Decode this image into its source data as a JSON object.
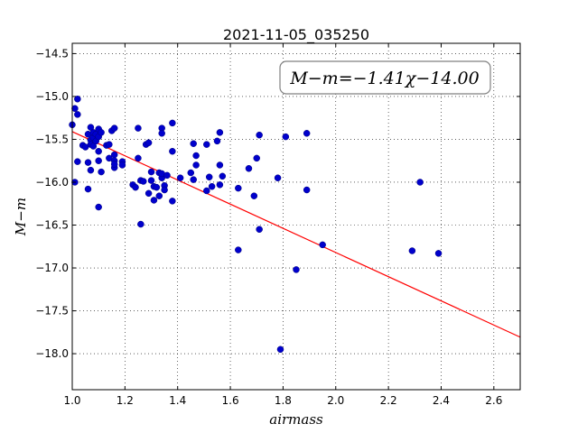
{
  "chart_data": {
    "type": "scatter",
    "title": "2021-11-05_035250",
    "xlabel": "airmass",
    "ylabel": "M−m",
    "annotation": "M−m=−1.41χ−14.00",
    "xlim": [
      1.0,
      2.7
    ],
    "ylim": [
      -18.42,
      -14.38
    ],
    "inverted_y": true,
    "grid": true,
    "x_ticks": [
      "1.0",
      "1.2",
      "1.4",
      "1.6",
      "1.8",
      "2.0",
      "2.2",
      "2.4",
      "2.6"
    ],
    "y_ticks": [
      "−14.5",
      "−15.0",
      "−15.5",
      "−16.0",
      "−16.5",
      "−17.0",
      "−17.5",
      "−18.0"
    ],
    "fit": {
      "slope": -1.41,
      "intercept": -14.0,
      "color": "#ff0000"
    },
    "point_color": "#0000cc",
    "points": [
      [
        1.0,
        -15.33
      ],
      [
        1.01,
        -15.14
      ],
      [
        1.02,
        -15.03
      ],
      [
        1.02,
        -15.21
      ],
      [
        1.01,
        -16.0
      ],
      [
        1.02,
        -15.76
      ],
      [
        1.04,
        -15.57
      ],
      [
        1.05,
        -15.59
      ],
      [
        1.06,
        -15.77
      ],
      [
        1.06,
        -15.44
      ],
      [
        1.07,
        -15.36
      ],
      [
        1.07,
        -15.51
      ],
      [
        1.07,
        -15.56
      ],
      [
        1.08,
        -15.48
      ],
      [
        1.08,
        -15.58
      ],
      [
        1.08,
        -15.42
      ],
      [
        1.09,
        -15.52
      ],
      [
        1.09,
        -15.44
      ],
      [
        1.1,
        -15.38
      ],
      [
        1.1,
        -15.75
      ],
      [
        1.1,
        -15.64
      ],
      [
        1.1,
        -15.47
      ],
      [
        1.11,
        -15.42
      ],
      [
        1.11,
        -15.88
      ],
      [
        1.06,
        -16.08
      ],
      [
        1.07,
        -15.86
      ],
      [
        1.1,
        -16.29
      ],
      [
        1.13,
        -15.57
      ],
      [
        1.14,
        -15.56
      ],
      [
        1.14,
        -15.72
      ],
      [
        1.15,
        -15.4
      ],
      [
        1.16,
        -15.37
      ],
      [
        1.16,
        -15.68
      ],
      [
        1.16,
        -15.75
      ],
      [
        1.16,
        -15.83
      ],
      [
        1.16,
        -15.79
      ],
      [
        1.19,
        -15.76
      ],
      [
        1.19,
        -15.8
      ],
      [
        1.23,
        -16.03
      ],
      [
        1.24,
        -16.06
      ],
      [
        1.25,
        -15.37
      ],
      [
        1.25,
        -15.72
      ],
      [
        1.26,
        -15.98
      ],
      [
        1.26,
        -16.49
      ],
      [
        1.27,
        -15.99
      ],
      [
        1.28,
        -15.56
      ],
      [
        1.29,
        -15.54
      ],
      [
        1.29,
        -16.13
      ],
      [
        1.3,
        -15.88
      ],
      [
        1.3,
        -15.98
      ],
      [
        1.31,
        -16.21
      ],
      [
        1.31,
        -16.05
      ],
      [
        1.32,
        -16.06
      ],
      [
        1.33,
        -15.89
      ],
      [
        1.33,
        -16.16
      ],
      [
        1.34,
        -15.37
      ],
      [
        1.34,
        -15.43
      ],
      [
        1.34,
        -15.95
      ],
      [
        1.34,
        -15.9
      ],
      [
        1.35,
        -16.04
      ],
      [
        1.35,
        -16.09
      ],
      [
        1.36,
        -15.92
      ],
      [
        1.38,
        -15.31
      ],
      [
        1.38,
        -15.64
      ],
      [
        1.38,
        -16.22
      ],
      [
        1.41,
        -15.95
      ],
      [
        1.45,
        -15.89
      ],
      [
        1.46,
        -15.55
      ],
      [
        1.46,
        -15.97
      ],
      [
        1.47,
        -15.69
      ],
      [
        1.47,
        -15.8
      ],
      [
        1.51,
        -15.56
      ],
      [
        1.51,
        -16.1
      ],
      [
        1.52,
        -15.94
      ],
      [
        1.53,
        -16.05
      ],
      [
        1.55,
        -15.52
      ],
      [
        1.56,
        -15.42
      ],
      [
        1.56,
        -15.8
      ],
      [
        1.56,
        -16.03
      ],
      [
        1.57,
        -15.93
      ],
      [
        1.63,
        -16.07
      ],
      [
        1.63,
        -16.79
      ],
      [
        1.67,
        -15.84
      ],
      [
        1.69,
        -16.16
      ],
      [
        1.7,
        -15.72
      ],
      [
        1.71,
        -15.45
      ],
      [
        1.71,
        -16.55
      ],
      [
        1.78,
        -15.95
      ],
      [
        1.79,
        -17.95
      ],
      [
        1.81,
        -15.47
      ],
      [
        1.85,
        -17.02
      ],
      [
        1.89,
        -15.43
      ],
      [
        1.89,
        -16.09
      ],
      [
        1.95,
        -16.73
      ],
      [
        2.29,
        -16.8
      ],
      [
        2.32,
        -16.0
      ],
      [
        2.39,
        -16.83
      ]
    ]
  }
}
